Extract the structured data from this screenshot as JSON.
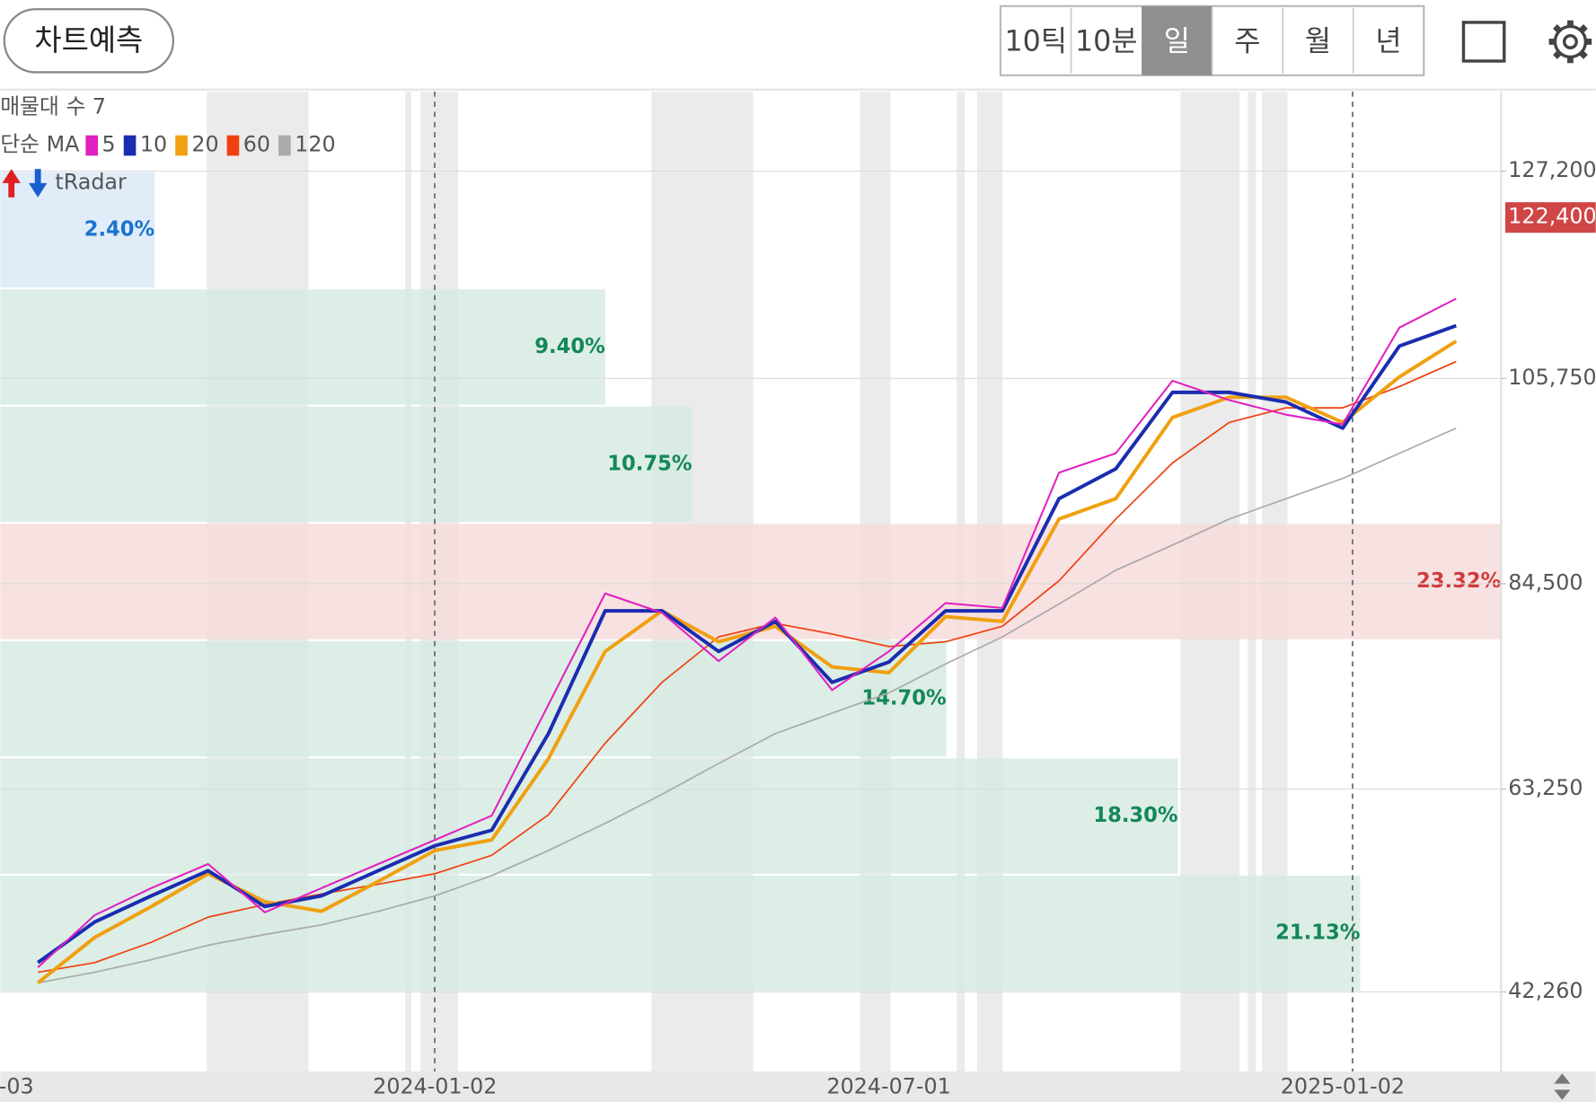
{
  "toolbar": {
    "predict_button": "차트예측",
    "periods": [
      "10틱",
      "10분",
      "일",
      "주",
      "월",
      "년"
    ],
    "selected_period": "일"
  },
  "chart_data": {
    "type": "line",
    "volume_profile_label": "매물대 수 7",
    "ma_label": "단순 MA",
    "radar_label": "tRadar",
    "categories": [
      "-03",
      null,
      null,
      null,
      null,
      null,
      null,
      "2024-01-02",
      null,
      null,
      null,
      null,
      null,
      null,
      null,
      "2024-07-01",
      null,
      null,
      null,
      null,
      null,
      null,
      null,
      "2025-01-02",
      null,
      null
    ],
    "series": [
      {
        "name": "5",
        "color": "#e020c0",
        "values": [
          44800,
          50200,
          53000,
          55500,
          50500,
          53000,
          55500,
          58000,
          60500,
          72000,
          83500,
          81500,
          76500,
          81000,
          73500,
          77500,
          82500,
          82000,
          96000,
          98000,
          105500,
          103500,
          102000,
          101000,
          111000,
          114000
        ]
      },
      {
        "name": "10",
        "color": "#1a2db0",
        "values": [
          45300,
          49500,
          52200,
          54800,
          51100,
          52200,
          54800,
          57400,
          59000,
          69000,
          81700,
          81700,
          77500,
          80600,
          74300,
          76400,
          81700,
          81700,
          93300,
          96400,
          104300,
          104300,
          103300,
          100600,
          109100,
          111200
        ]
      },
      {
        "name": "20",
        "color": "#f0a010",
        "values": [
          43200,
          47900,
          51100,
          54500,
          51600,
          50600,
          53700,
          56900,
          58000,
          66400,
          77500,
          81700,
          78500,
          80100,
          75900,
          75300,
          81100,
          80600,
          91200,
          93300,
          101700,
          103800,
          103800,
          101200,
          105900,
          109600
        ]
      },
      {
        "name": "60",
        "color": "#f04010",
        "values": [
          44300,
          45300,
          47400,
          50000,
          51300,
          52400,
          53400,
          54500,
          56400,
          60600,
          68000,
          74300,
          79000,
          80400,
          79300,
          78000,
          78500,
          80100,
          84800,
          91200,
          97000,
          101200,
          102700,
          102700,
          104900,
          107500
        ]
      },
      {
        "name": "120",
        "color": "#aaaaaa",
        "values": [
          43200,
          44300,
          45600,
          47100,
          48200,
          49200,
          50600,
          52200,
          54300,
          56900,
          59700,
          62700,
          65900,
          69000,
          71100,
          73200,
          76200,
          79000,
          82400,
          85900,
          88500,
          91200,
          93300,
          95400,
          98000,
          100600
        ]
      }
    ],
    "ylim": [
      34030,
      135430
    ],
    "yticks": [
      {
        "value": 42260,
        "label": "42,260"
      },
      {
        "value": 63250,
        "label": "63,250"
      },
      {
        "value": 84500,
        "label": "84,500"
      },
      {
        "value": 105750,
        "label": "105,750"
      },
      {
        "value": 127200,
        "label": "127,200"
      }
    ],
    "current_price": {
      "value": 122400,
      "label": "122,400"
    },
    "current_price_color": "#d04545",
    "grid": true,
    "volume_profile": {
      "values": [
        21.13,
        18.3,
        14.7,
        23.32,
        10.75,
        9.4,
        2.4
      ],
      "value_labels": [
        "21.13%",
        "18.30%",
        "14.70%",
        "23.32%",
        "10.75%",
        "9.40%",
        "2.40%"
      ],
      "colors": [
        "#d6ebe2",
        "#d6ebe2",
        "#d6ebe2",
        "#f7dcdc",
        "#d6ebe2",
        "#d6ebe2",
        "#dce9f8"
      ],
      "label_colors": [
        "#14875a",
        "#14875a",
        "#14875a",
        "#d03a3a",
        "#14875a",
        "#14875a",
        "#1a73d0"
      ]
    }
  }
}
